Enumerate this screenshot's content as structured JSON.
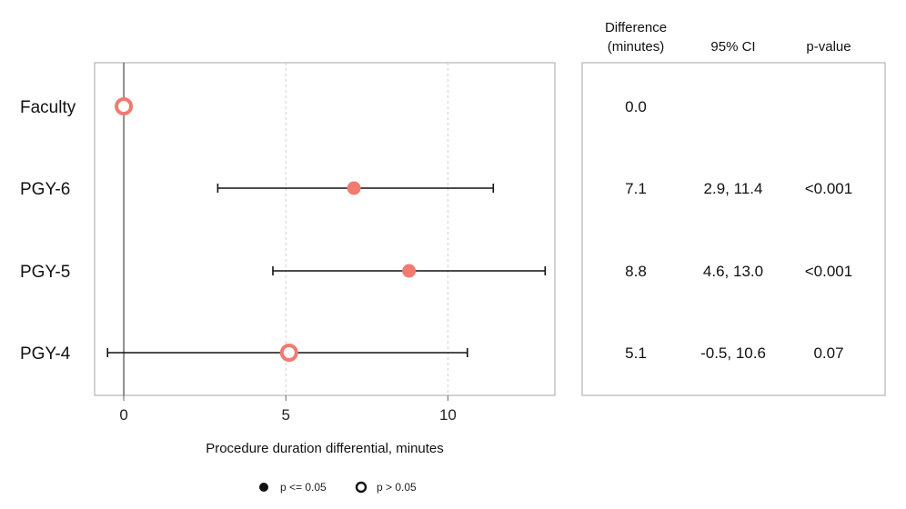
{
  "chart_data": {
    "type": "scatter",
    "subtype": "forest-plot",
    "xlabel": "Procedure duration differential, minutes",
    "xlim": [
      -0.9,
      13.3
    ],
    "xticks": [
      0,
      5,
      10
    ],
    "vertical_gridlines_dashed_at": [
      5,
      10
    ],
    "reference_line_at": 0,
    "marker_color": "#f07b70",
    "rows": [
      {
        "label": "Faculty",
        "estimate": 0.0,
        "ci_low": null,
        "ci_high": null,
        "significant": false,
        "difference": "0.0",
        "ci_text": "",
        "p_text": ""
      },
      {
        "label": "PGY-6",
        "estimate": 7.1,
        "ci_low": 2.9,
        "ci_high": 11.4,
        "significant": true,
        "difference": "7.1",
        "ci_text": "2.9, 11.4",
        "p_text": "<0.001"
      },
      {
        "label": "PGY-5",
        "estimate": 8.8,
        "ci_low": 4.6,
        "ci_high": 13.0,
        "significant": true,
        "difference": "8.8",
        "ci_text": "4.6, 13.0",
        "p_text": "<0.001"
      },
      {
        "label": "PGY-4",
        "estimate": 5.1,
        "ci_low": -0.5,
        "ci_high": 10.6,
        "significant": false,
        "difference": "5.1",
        "ci_text": "-0.5, 10.6",
        "p_text": "0.07"
      }
    ],
    "table_headers": {
      "difference_line1": "Difference",
      "difference_line2": "(minutes)",
      "ci": "95% CI",
      "p": "p-value"
    },
    "legend": [
      {
        "label": "p <= 0.05",
        "marker": "filled"
      },
      {
        "label": "p > 0.05",
        "marker": "open"
      }
    ],
    "legend_position": "bottom-center"
  }
}
